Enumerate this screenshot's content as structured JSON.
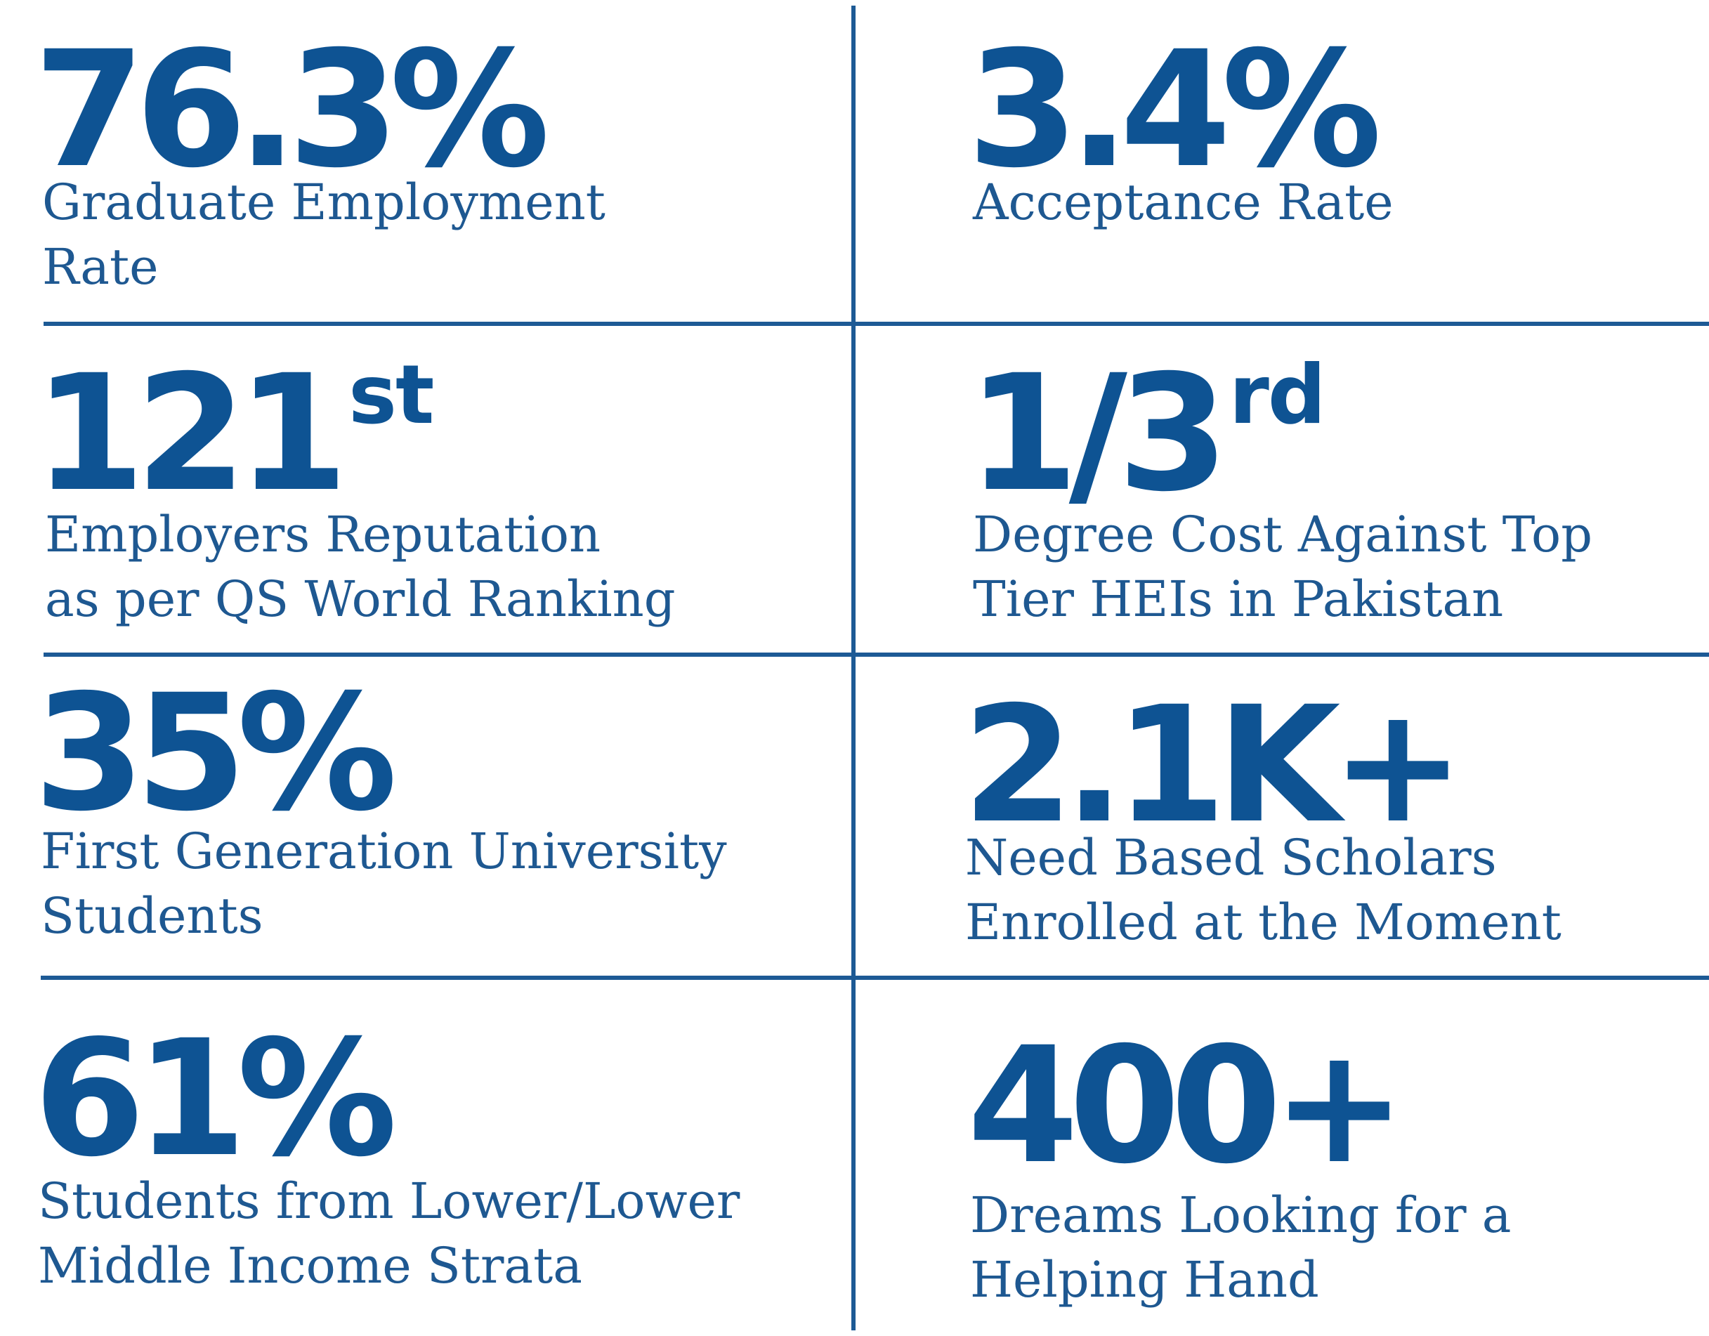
{
  "colors": {
    "figure": "#0e5393",
    "caption": "#1e5891",
    "divider": "#1d5a95"
  },
  "stats": [
    {
      "value": "76.3%",
      "suffix": "",
      "caption": [
        "Graduate Employment",
        "Rate"
      ]
    },
    {
      "value": "3.4%",
      "suffix": "",
      "caption": [
        "Acceptance Rate"
      ]
    },
    {
      "value": "121",
      "suffix": "st",
      "caption": [
        "Employers Reputation",
        "as per QS World Ranking"
      ]
    },
    {
      "value": "1/3",
      "suffix": "rd",
      "caption": [
        "Degree Cost Against Top",
        "Tier HEIs in Pakistan"
      ]
    },
    {
      "value": "35%",
      "suffix": "",
      "caption": [
        "First Generation University",
        "Students"
      ]
    },
    {
      "value": "2.1K+",
      "suffix": "",
      "caption": [
        "Need Based Scholars",
        "Enrolled at the Moment"
      ]
    },
    {
      "value": "61%",
      "suffix": "",
      "caption": [
        "Students from Lower/Lower",
        "Middle Income Strata"
      ]
    },
    {
      "value": "400+",
      "suffix": "",
      "caption": [
        "Dreams Looking for a",
        "Helping Hand"
      ]
    }
  ]
}
